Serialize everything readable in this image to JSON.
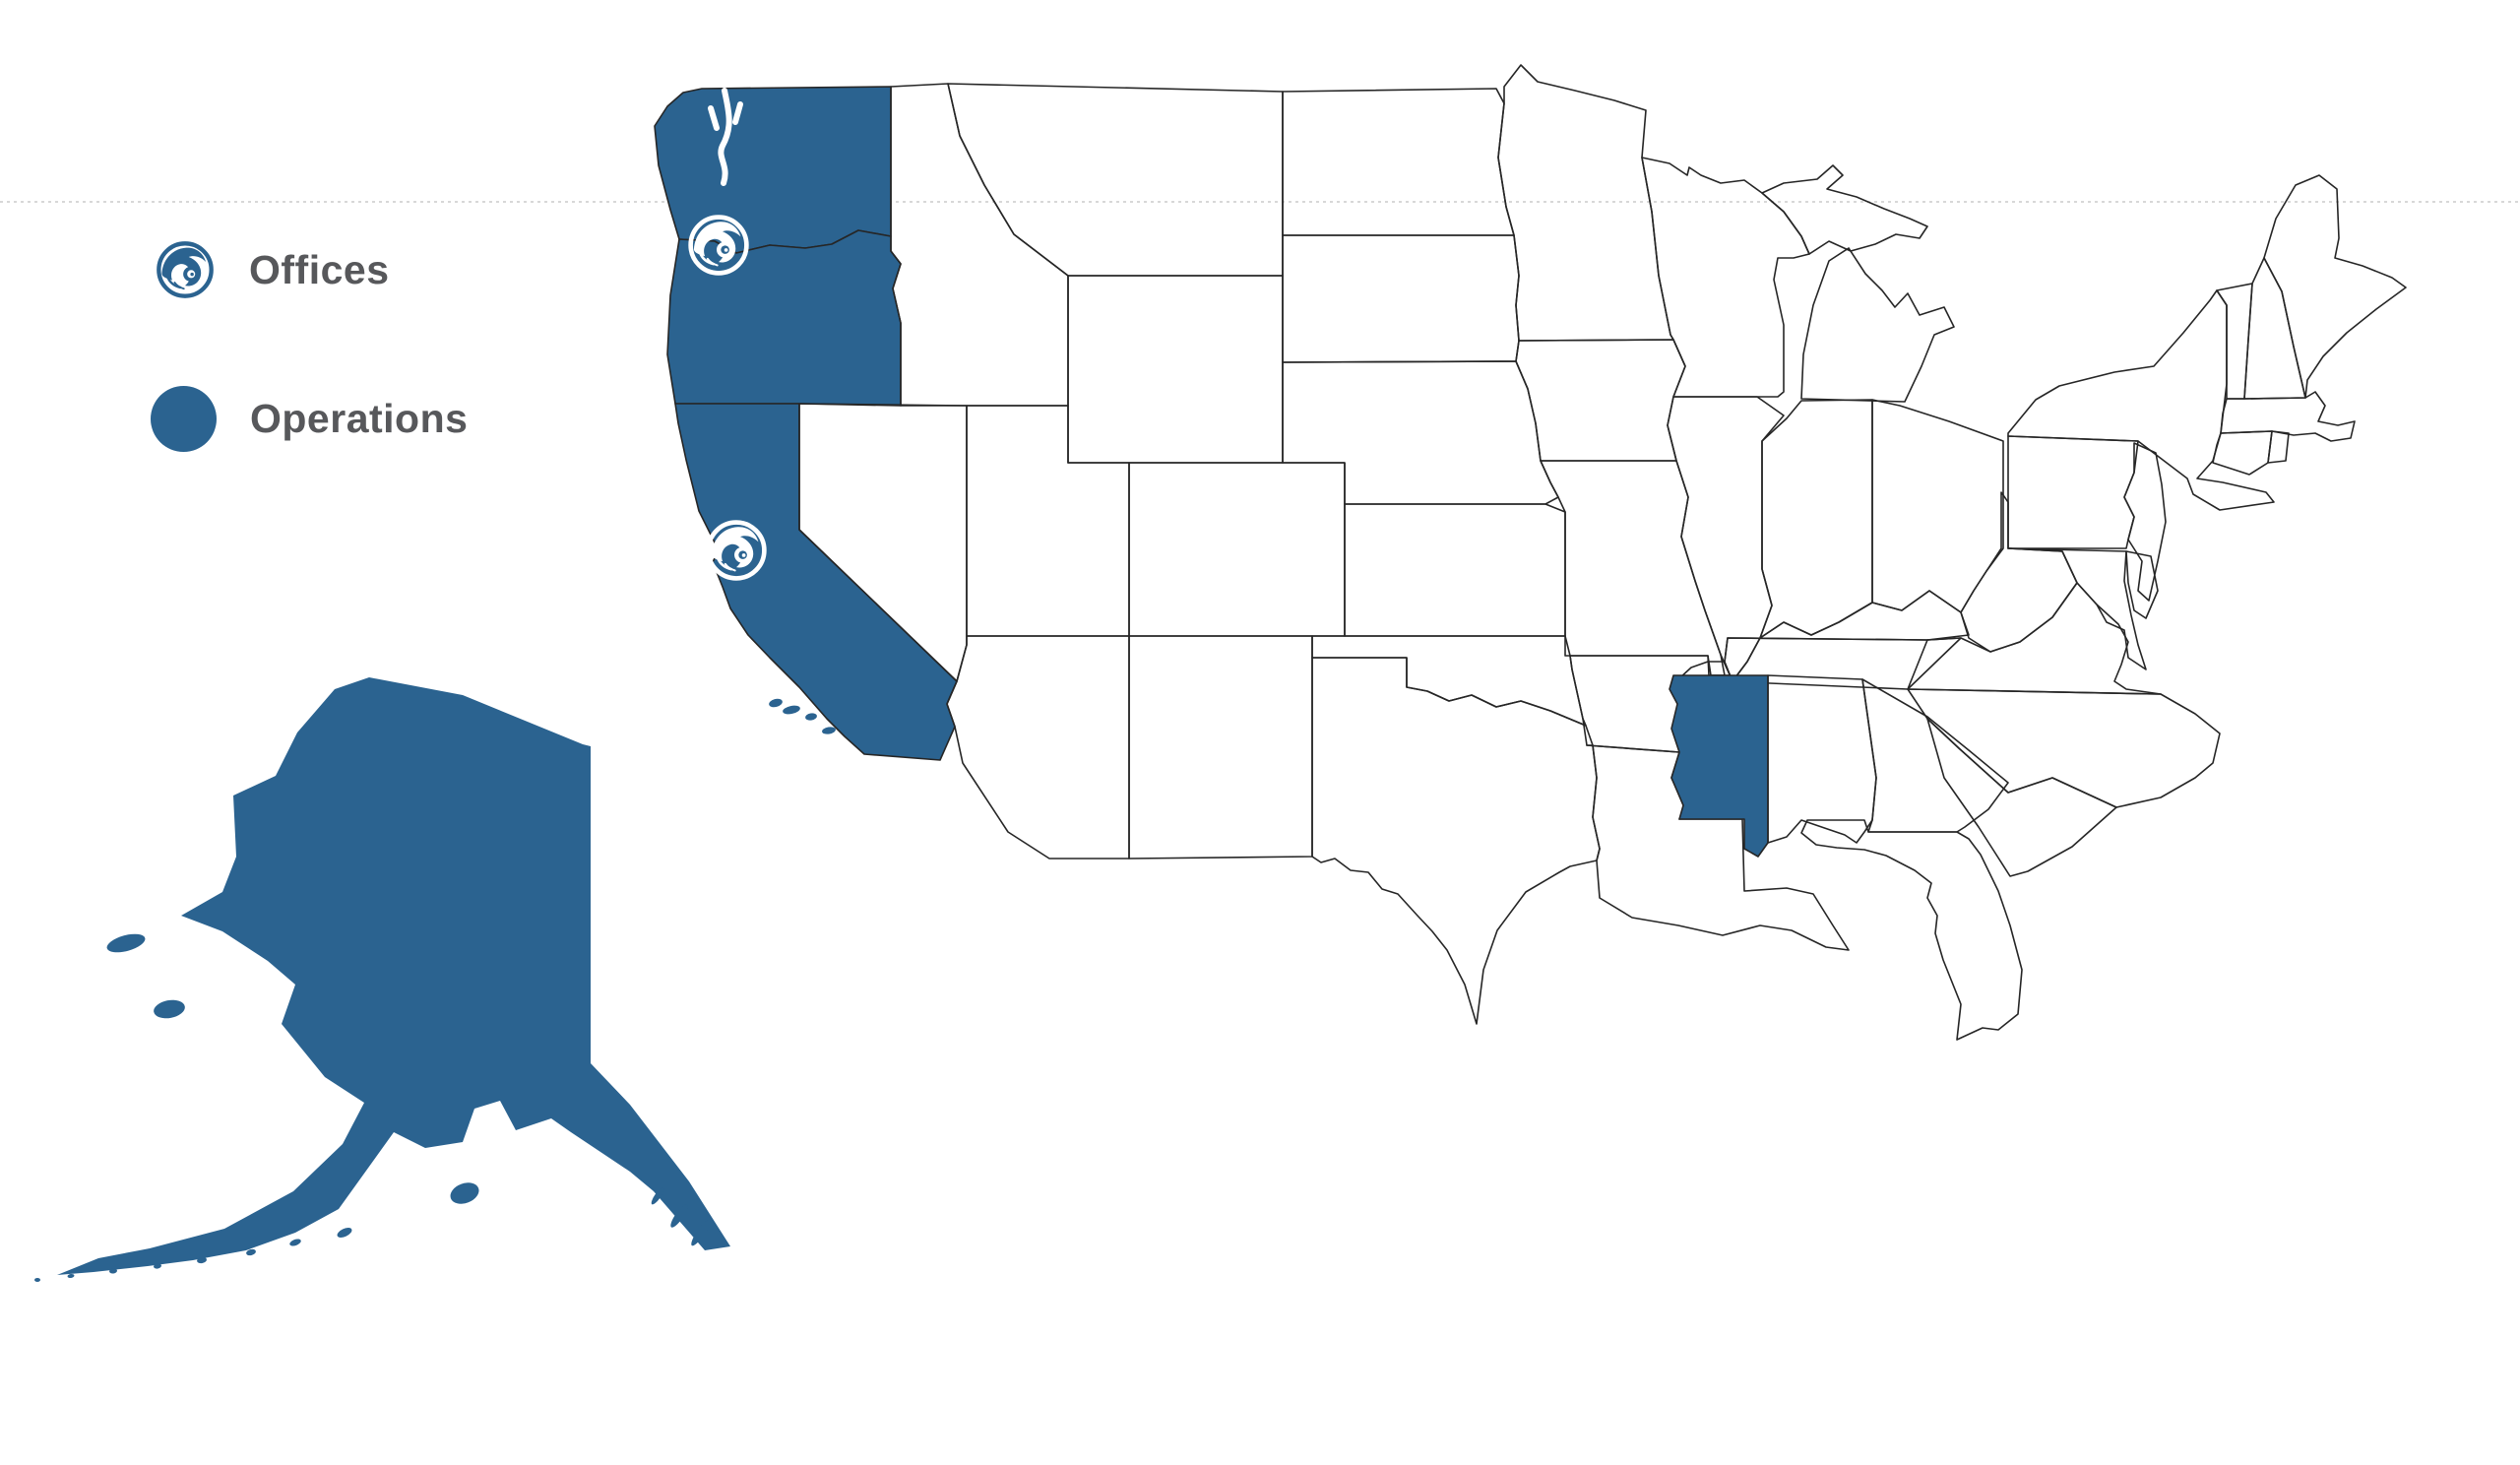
{
  "page": {
    "background": "#FFFFFF",
    "divider_line_color": "#D8D8D8"
  },
  "legend": {
    "items": [
      {
        "id": "offices",
        "label": "Offices",
        "marker": "wave-circle-icon",
        "color": "#2B6390"
      },
      {
        "id": "operations",
        "label": "Operations",
        "marker": "filled-circle",
        "color": "#2B6390"
      }
    ]
  },
  "map": {
    "type": "us-states-highlight-map",
    "operations_states": [
      "Washington",
      "Oregon",
      "California",
      "Alaska",
      "Mississippi"
    ],
    "office_markers": [
      {
        "id": "office-1",
        "near": "Washington-Oregon border (Columbia River)",
        "icon": "wave-circle-icon"
      },
      {
        "id": "office-2",
        "near": "Northern California (San Francisco Bay Area)",
        "icon": "wave-circle-icon"
      }
    ],
    "colors": {
      "highlight_fill": "#2B6390",
      "state_outline": "#262626",
      "marker_foreground": "#FFFFFF"
    }
  }
}
